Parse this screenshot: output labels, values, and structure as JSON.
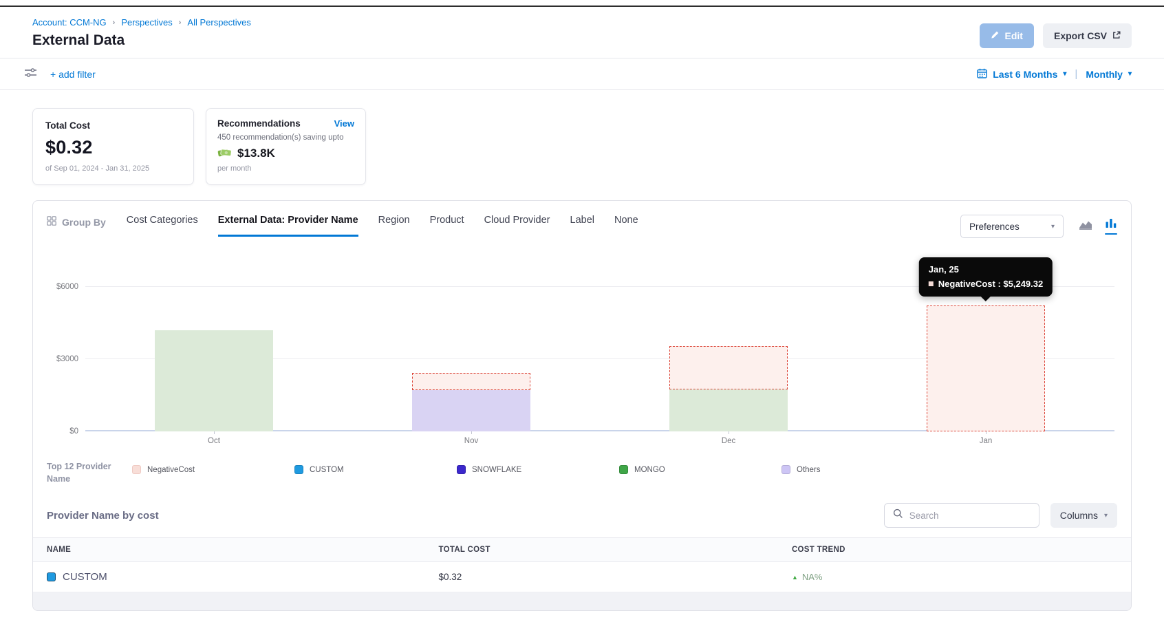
{
  "header": {
    "breadcrumb": [
      "Account: CCM-NG",
      "Perspectives",
      "All Perspectives"
    ],
    "title": "External Data",
    "edit_label": "Edit",
    "export_label": "Export CSV"
  },
  "filter_bar": {
    "add_filter_label": "+ add filter",
    "date_range_label": "Last 6 Months",
    "granularity_label": "Monthly"
  },
  "summary": {
    "total_cost": {
      "title": "Total Cost",
      "value": "$0.32",
      "period": "of Sep 01, 2024 - Jan 31, 2025"
    },
    "recommendations": {
      "title": "Recommendations",
      "view_label": "View",
      "line1": "450 recommendation(s) saving upto",
      "amount": "$13.8K",
      "line2": "per month"
    }
  },
  "group_by": {
    "label": "Group By",
    "tabs": [
      {
        "label": "Cost Categories",
        "active": false
      },
      {
        "label": "External Data: Provider Name",
        "active": true
      },
      {
        "label": "Region",
        "active": false
      },
      {
        "label": "Product",
        "active": false
      },
      {
        "label": "Cloud Provider",
        "active": false
      },
      {
        "label": "Label",
        "active": false
      },
      {
        "label": "None",
        "active": false
      }
    ],
    "preferences_label": "Preferences"
  },
  "chart_data": {
    "type": "bar",
    "stacked": true,
    "categories": [
      "Oct",
      "Nov",
      "Dec",
      "Jan"
    ],
    "series": [
      {
        "name": "MONGO",
        "values": [
          4200,
          0,
          1750,
          0
        ],
        "color": "#dcead8",
        "style": "solid"
      },
      {
        "name": "Others",
        "values": [
          0,
          1725,
          0,
          0
        ],
        "color": "#d9d3f3",
        "style": "solid"
      },
      {
        "name": "NegativeCost",
        "values": [
          0,
          710,
          1800,
          5249.32
        ],
        "color": "#fdf0ed",
        "style": "dashed",
        "border_color": "#dc4437"
      }
    ],
    "y_ticks": [
      "$0",
      "$3000",
      "$6000"
    ],
    "y_tick_values": [
      0,
      3000,
      6000
    ],
    "ylim": [
      0,
      7300
    ],
    "grid": true,
    "legend_position": "bottom",
    "tooltip": {
      "target_category": "Jan",
      "title": "Jan, 25",
      "line": "NegativeCost : $5,249.32"
    }
  },
  "legend": {
    "title": "Top 12 Provider Name",
    "items": [
      {
        "label": "NegativeCost",
        "color": "#f8ded8",
        "border": "#efcac3"
      },
      {
        "label": "CUSTOM",
        "color": "#1f9ae0",
        "border": "rgba(0,0,0,0.15)"
      },
      {
        "label": "SNOWFLAKE",
        "color": "#3b28cc",
        "border": "rgba(0,0,0,0.15)"
      },
      {
        "label": "MONGO",
        "color": "#3fa648",
        "border": "rgba(0,0,0,0.15)"
      },
      {
        "label": "Others",
        "color": "#cdc5f5",
        "border": "rgba(0,0,0,0.12)"
      }
    ]
  },
  "table": {
    "title": "Provider Name by cost",
    "search_placeholder": "Search",
    "columns_label": "Columns",
    "headers": [
      "NAME",
      "TOTAL COST",
      "COST TREND"
    ],
    "rows": [
      {
        "name": "CUSTOM",
        "swatch_color": "#1f9ae0",
        "total_cost": "$0.32",
        "cost_trend": "NA%",
        "trend_direction": "up"
      }
    ]
  }
}
